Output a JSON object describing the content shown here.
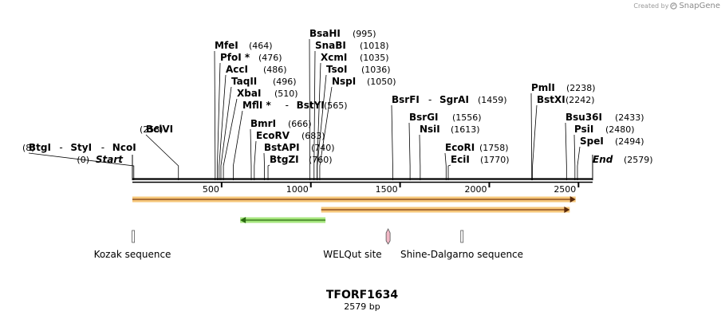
{
  "credit": {
    "prefix": "Created by",
    "brand": "SnapGene"
  },
  "map": {
    "title": "TFORF1634",
    "length_label": "2579 bp",
    "total_bp": 2579,
    "start": {
      "label": "Start",
      "pos_label": "(0)",
      "pos": 0
    },
    "end": {
      "label": "End",
      "pos_label": "(2579)",
      "pos": 2579
    },
    "ticks": [
      {
        "value": 500,
        "label": "500"
      },
      {
        "value": 1000,
        "label": "1000"
      },
      {
        "value": 1500,
        "label": "1500"
      },
      {
        "value": 2000,
        "label": "2000"
      },
      {
        "value": 2500,
        "label": "2500"
      }
    ],
    "sites": [
      {
        "names": [
          "BtgI",
          "StyI",
          "NcoI"
        ],
        "pos": 8,
        "pos_label": "(8)"
      },
      {
        "names": [
          "BclVI"
        ],
        "pos": 258,
        "pos_label": "(258)"
      },
      {
        "names": [
          "MfeI"
        ],
        "pos": 464,
        "pos_label": "(464)"
      },
      {
        "names": [
          "PfoI *"
        ],
        "pos": 476,
        "pos_label": "(476)"
      },
      {
        "names": [
          "AccI"
        ],
        "pos": 486,
        "pos_label": "(486)"
      },
      {
        "names": [
          "TaqII"
        ],
        "pos": 496,
        "pos_label": "(496)"
      },
      {
        "names": [
          "XbaI"
        ],
        "pos": 510,
        "pos_label": "(510)"
      },
      {
        "names": [
          "MflI *",
          "BstYI"
        ],
        "pos": 565,
        "pos_label": "(565)"
      },
      {
        "names": [
          "BmrI"
        ],
        "pos": 666,
        "pos_label": "(666)"
      },
      {
        "names": [
          "EcoRV"
        ],
        "pos": 683,
        "pos_label": "(683)"
      },
      {
        "names": [
          "BstAPI"
        ],
        "pos": 740,
        "pos_label": "(740)"
      },
      {
        "names": [
          "BtgZI"
        ],
        "pos": 760,
        "pos_label": "(760)"
      },
      {
        "names": [
          "BsaHI"
        ],
        "pos": 995,
        "pos_label": "(995)"
      },
      {
        "names": [
          "SnaBI"
        ],
        "pos": 1018,
        "pos_label": "(1018)"
      },
      {
        "names": [
          "XcmI"
        ],
        "pos": 1035,
        "pos_label": "(1035)"
      },
      {
        "names": [
          "TsoI"
        ],
        "pos": 1036,
        "pos_label": "(1036)"
      },
      {
        "names": [
          "NspI"
        ],
        "pos": 1050,
        "pos_label": "(1050)"
      },
      {
        "names": [
          "BsrFI",
          "SgrAI"
        ],
        "pos": 1459,
        "pos_label": "(1459)"
      },
      {
        "names": [
          "BsrGI"
        ],
        "pos": 1556,
        "pos_label": "(1556)"
      },
      {
        "names": [
          "NsiI"
        ],
        "pos": 1613,
        "pos_label": "(1613)"
      },
      {
        "names": [
          "EcoRI"
        ],
        "pos": 1758,
        "pos_label": "(1758)"
      },
      {
        "names": [
          "EciI"
        ],
        "pos": 1770,
        "pos_label": "(1770)"
      },
      {
        "names": [
          "PmlI"
        ],
        "pos": 2238,
        "pos_label": "(2238)"
      },
      {
        "names": [
          "BstXI"
        ],
        "pos": 2242,
        "pos_label": "(2242)"
      },
      {
        "names": [
          "Bsu36I"
        ],
        "pos": 2433,
        "pos_label": "(2433)"
      },
      {
        "names": [
          "PsiI"
        ],
        "pos": 2480,
        "pos_label": "(2480)"
      },
      {
        "names": [
          "SpeI"
        ],
        "pos": 2494,
        "pos_label": "(2494)"
      }
    ],
    "orfs": [
      {
        "start": 0,
        "end": 2484,
        "strand": "forward",
        "color": "#f5c16c"
      },
      {
        "start": 1058,
        "end": 2451,
        "strand": "forward",
        "color": "#f5c16c"
      },
      {
        "start": 604,
        "end": 1082,
        "strand": "reverse",
        "color": "#9be36f"
      }
    ],
    "features": [
      {
        "label": "Kozak sequence",
        "pos": 5,
        "color": "#ffffff"
      },
      {
        "label": "WELQut site",
        "pos": 1433,
        "color": "#f2b8c6"
      },
      {
        "label": "Shine-Dalgarno sequence",
        "pos": 1847,
        "color": "#ffffff"
      }
    ],
    "colors": {
      "backbone": "#000000",
      "orf_stroke": "#7a3a10"
    }
  }
}
